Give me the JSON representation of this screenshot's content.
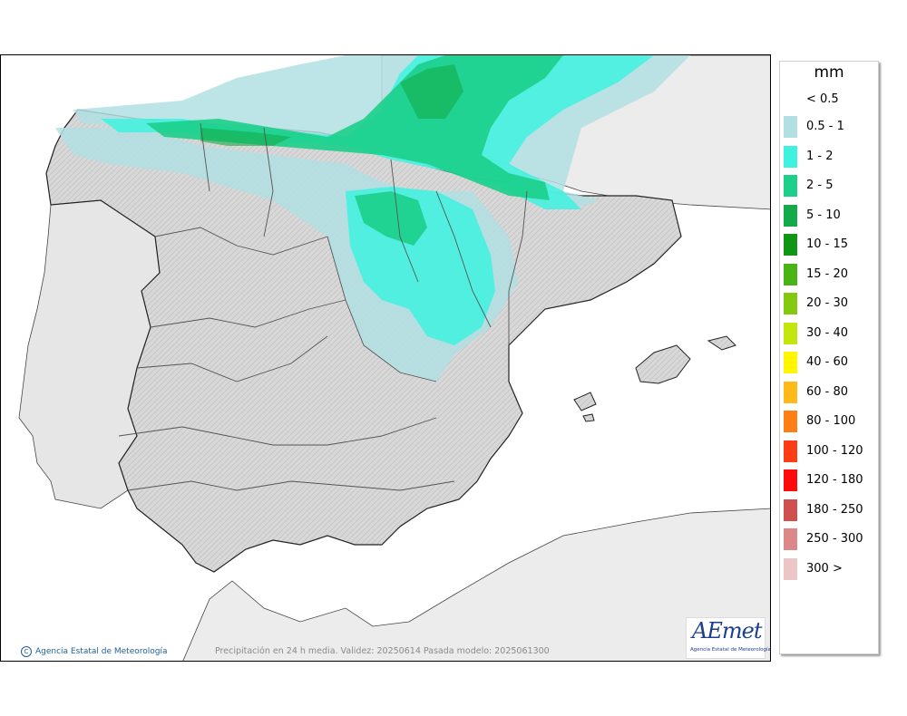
{
  "legend": {
    "unit": "mm",
    "below_label": "< 0.5",
    "items": [
      {
        "label": "0.5 - 1",
        "color": "#b2dfe2"
      },
      {
        "label": "1 - 2",
        "color": "#3ff2df"
      },
      {
        "label": "2 - 5",
        "color": "#1ccf8a"
      },
      {
        "label": "5 - 10",
        "color": "#12ab4a"
      },
      {
        "label": "10 - 15",
        "color": "#0f9614"
      },
      {
        "label": "15 - 20",
        "color": "#49b514"
      },
      {
        "label": "20 - 30",
        "color": "#83c90d"
      },
      {
        "label": "30 - 40",
        "color": "#c4e60f"
      },
      {
        "label": "40 - 60",
        "color": "#fff600"
      },
      {
        "label": "60 - 80",
        "color": "#ffba1a"
      },
      {
        "label": "80 - 100",
        "color": "#ff7f12"
      },
      {
        "label": "100 - 120",
        "color": "#ff3d14"
      },
      {
        "label": "120 - 180",
        "color": "#ff0a0a"
      },
      {
        "label": "180 - 250",
        "color": "#d05050"
      },
      {
        "label": "250 - 300",
        "color": "#dc8888"
      },
      {
        "label": "300 >",
        "color": "#ecc6c6"
      }
    ]
  },
  "footer": {
    "credit": "Agencia Estatal de Meteorología",
    "caption": "Precipitación en 24 h media. Validez: 20250614 Pasada modelo: 2025061300"
  },
  "logo": {
    "text": "AEmet",
    "subtitle": "Agencia Estatal de Meteorología"
  },
  "colors": {
    "land": "#d9d9d9",
    "sea": "#ffffff",
    "foreign_land": "#ececec"
  }
}
